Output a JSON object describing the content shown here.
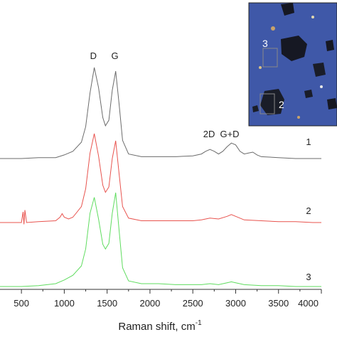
{
  "chart_data": {
    "type": "line",
    "title": "",
    "xlabel": "Raman shift, cm",
    "xlabel_sup": "-1",
    "ylabel": "",
    "xlim": [
      250,
      4000
    ],
    "xticks": [
      500,
      1000,
      1500,
      2000,
      2500,
      3000,
      3500,
      4000
    ],
    "x_tick_labels": [
      "500",
      "1000",
      "1500",
      "2000",
      "2500",
      "3000",
      "3500",
      "4000"
    ],
    "y_ticks_shown": false,
    "grid": false,
    "legend": "none",
    "series": [
      {
        "name": "1",
        "color": "#6b6b6b",
        "x": [
          250,
          500,
          700,
          900,
          1000,
          1100,
          1200,
          1250,
          1300,
          1350,
          1400,
          1450,
          1480,
          1520,
          1560,
          1600,
          1640,
          1680,
          1750,
          1900,
          2100,
          2300,
          2500,
          2600,
          2650,
          2700,
          2750,
          2800,
          2850,
          2900,
          2950,
          3000,
          3050,
          3100,
          3150,
          3200,
          3250,
          3300,
          3500,
          3700,
          3900,
          4000
        ],
        "y": [
          0.0,
          0.0,
          0.01,
          0.01,
          0.04,
          0.08,
          0.18,
          0.35,
          0.72,
          1.0,
          0.78,
          0.45,
          0.36,
          0.42,
          0.75,
          0.96,
          0.6,
          0.2,
          0.05,
          0.02,
          0.02,
          0.02,
          0.03,
          0.05,
          0.08,
          0.1,
          0.08,
          0.05,
          0.08,
          0.13,
          0.17,
          0.15,
          0.08,
          0.05,
          0.06,
          0.07,
          0.04,
          0.02,
          0.01,
          0.0,
          0.0,
          0.0
        ]
      },
      {
        "name": "2",
        "color": "#e8534e",
        "x": [
          250,
          500,
          520,
          530,
          540,
          560,
          700,
          900,
          950,
          975,
          1000,
          1050,
          1100,
          1200,
          1250,
          1300,
          1350,
          1400,
          1450,
          1480,
          1520,
          1560,
          1600,
          1640,
          1680,
          1750,
          1900,
          2100,
          2300,
          2500,
          2600,
          2700,
          2800,
          2900,
          2950,
          3000,
          3100,
          3300,
          3500,
          3700,
          3900,
          4000
        ],
        "y": [
          0.0,
          0.0,
          0.12,
          -0.02,
          0.14,
          0.0,
          0.01,
          0.02,
          0.06,
          0.1,
          0.06,
          0.04,
          0.06,
          0.18,
          0.38,
          0.78,
          1.0,
          0.75,
          0.42,
          0.34,
          0.4,
          0.72,
          0.92,
          0.55,
          0.18,
          0.05,
          0.02,
          0.02,
          0.02,
          0.02,
          0.03,
          0.05,
          0.04,
          0.07,
          0.09,
          0.07,
          0.03,
          0.02,
          0.01,
          0.01,
          0.0,
          0.0
        ]
      },
      {
        "name": "3",
        "color": "#5fdc5f",
        "x": [
          250,
          500,
          700,
          900,
          1000,
          1100,
          1200,
          1250,
          1300,
          1350,
          1400,
          1450,
          1480,
          1520,
          1560,
          1600,
          1640,
          1680,
          1750,
          1900,
          2100,
          2300,
          2500,
          2600,
          2700,
          2800,
          2900,
          2950,
          3000,
          3100,
          3300,
          3500,
          3700,
          3900,
          4000
        ],
        "y": [
          0.0,
          0.0,
          0.01,
          0.03,
          0.07,
          0.12,
          0.22,
          0.4,
          0.78,
          0.95,
          0.72,
          0.45,
          0.4,
          0.46,
          0.78,
          1.0,
          0.6,
          0.2,
          0.06,
          0.03,
          0.03,
          0.02,
          0.02,
          0.02,
          0.03,
          0.02,
          0.04,
          0.05,
          0.04,
          0.02,
          0.01,
          0.01,
          0.0,
          0.0,
          0.0
        ]
      }
    ],
    "peak_labels": [
      {
        "text": "D",
        "x": 1340
      },
      {
        "text": "G",
        "x": 1590
      },
      {
        "text": "2D",
        "x": 2690
      },
      {
        "text": "G+D",
        "x": 2930
      }
    ],
    "curve_labels": [
      "1",
      "2",
      "3"
    ],
    "inset": {
      "description_labels": [
        "3",
        "2"
      ],
      "background": "#3f58a8"
    }
  }
}
